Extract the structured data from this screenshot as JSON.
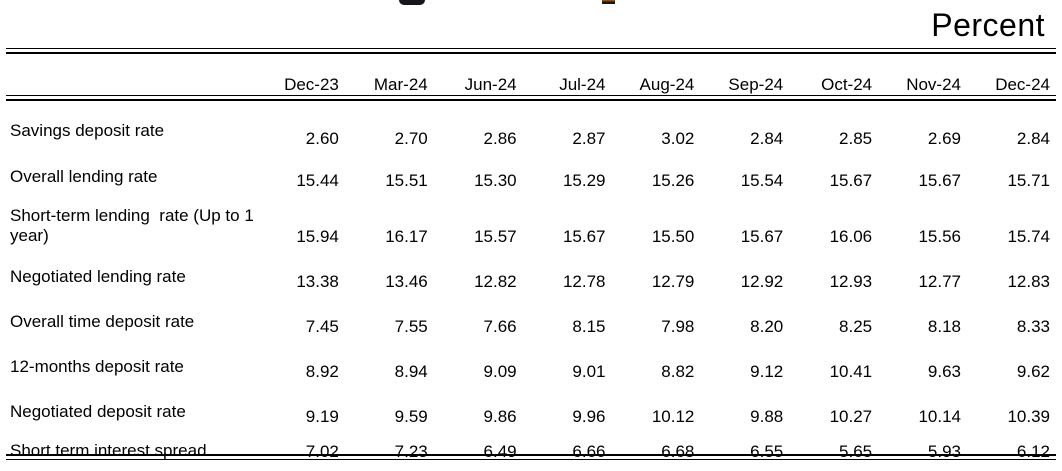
{
  "header": {
    "unit_label": "Percent"
  },
  "table": {
    "columns": [
      "Dec-23",
      "Mar-24",
      "Jun-24",
      "Jul-24",
      "Aug-24",
      "Sep-24",
      "Oct-24",
      "Nov-24",
      "Dec-24"
    ],
    "rows": [
      {
        "label": "Savings deposit rate",
        "values": [
          "2.60",
          "2.70",
          "2.86",
          "2.87",
          "3.02",
          "2.84",
          "2.85",
          "2.69",
          "2.84"
        ]
      },
      {
        "label": "Overall lending rate",
        "values": [
          "15.44",
          "15.51",
          "15.30",
          "15.29",
          "15.26",
          "15.54",
          "15.67",
          "15.67",
          "15.71"
        ]
      },
      {
        "label": "Short-term lending  rate (Up to 1 year)",
        "values": [
          "15.94",
          "16.17",
          "15.57",
          "15.67",
          "15.50",
          "15.67",
          "16.06",
          "15.56",
          "15.74"
        ]
      },
      {
        "label": "Negotiated lending rate",
        "values": [
          "13.38",
          "13.46",
          "12.82",
          "12.78",
          "12.79",
          "12.92",
          "12.93",
          "12.77",
          "12.83"
        ]
      },
      {
        "label": "Overall time deposit rate",
        "values": [
          "7.45",
          "7.55",
          "7.66",
          "8.15",
          "7.98",
          "8.20",
          "8.25",
          "8.18",
          "8.33"
        ]
      },
      {
        "label": "12-months deposit rate",
        "values": [
          "8.92",
          "8.94",
          "9.09",
          "9.01",
          "8.82",
          "9.12",
          "10.41",
          "9.63",
          "9.62"
        ]
      },
      {
        "label": "Negotiated deposit rate",
        "values": [
          "9.19",
          "9.59",
          "9.86",
          "9.96",
          "10.12",
          "9.88",
          "10.27",
          "10.14",
          "10.39"
        ]
      },
      {
        "label": "Short term interest spread",
        "values": [
          "7.02",
          "7.23",
          "6.49",
          "6.66",
          "6.68",
          "6.55",
          "5.65",
          "5.93",
          "6.12"
        ]
      }
    ]
  },
  "colors": {
    "text": "#000000",
    "background": "#ffffff",
    "rule": "#000000"
  }
}
